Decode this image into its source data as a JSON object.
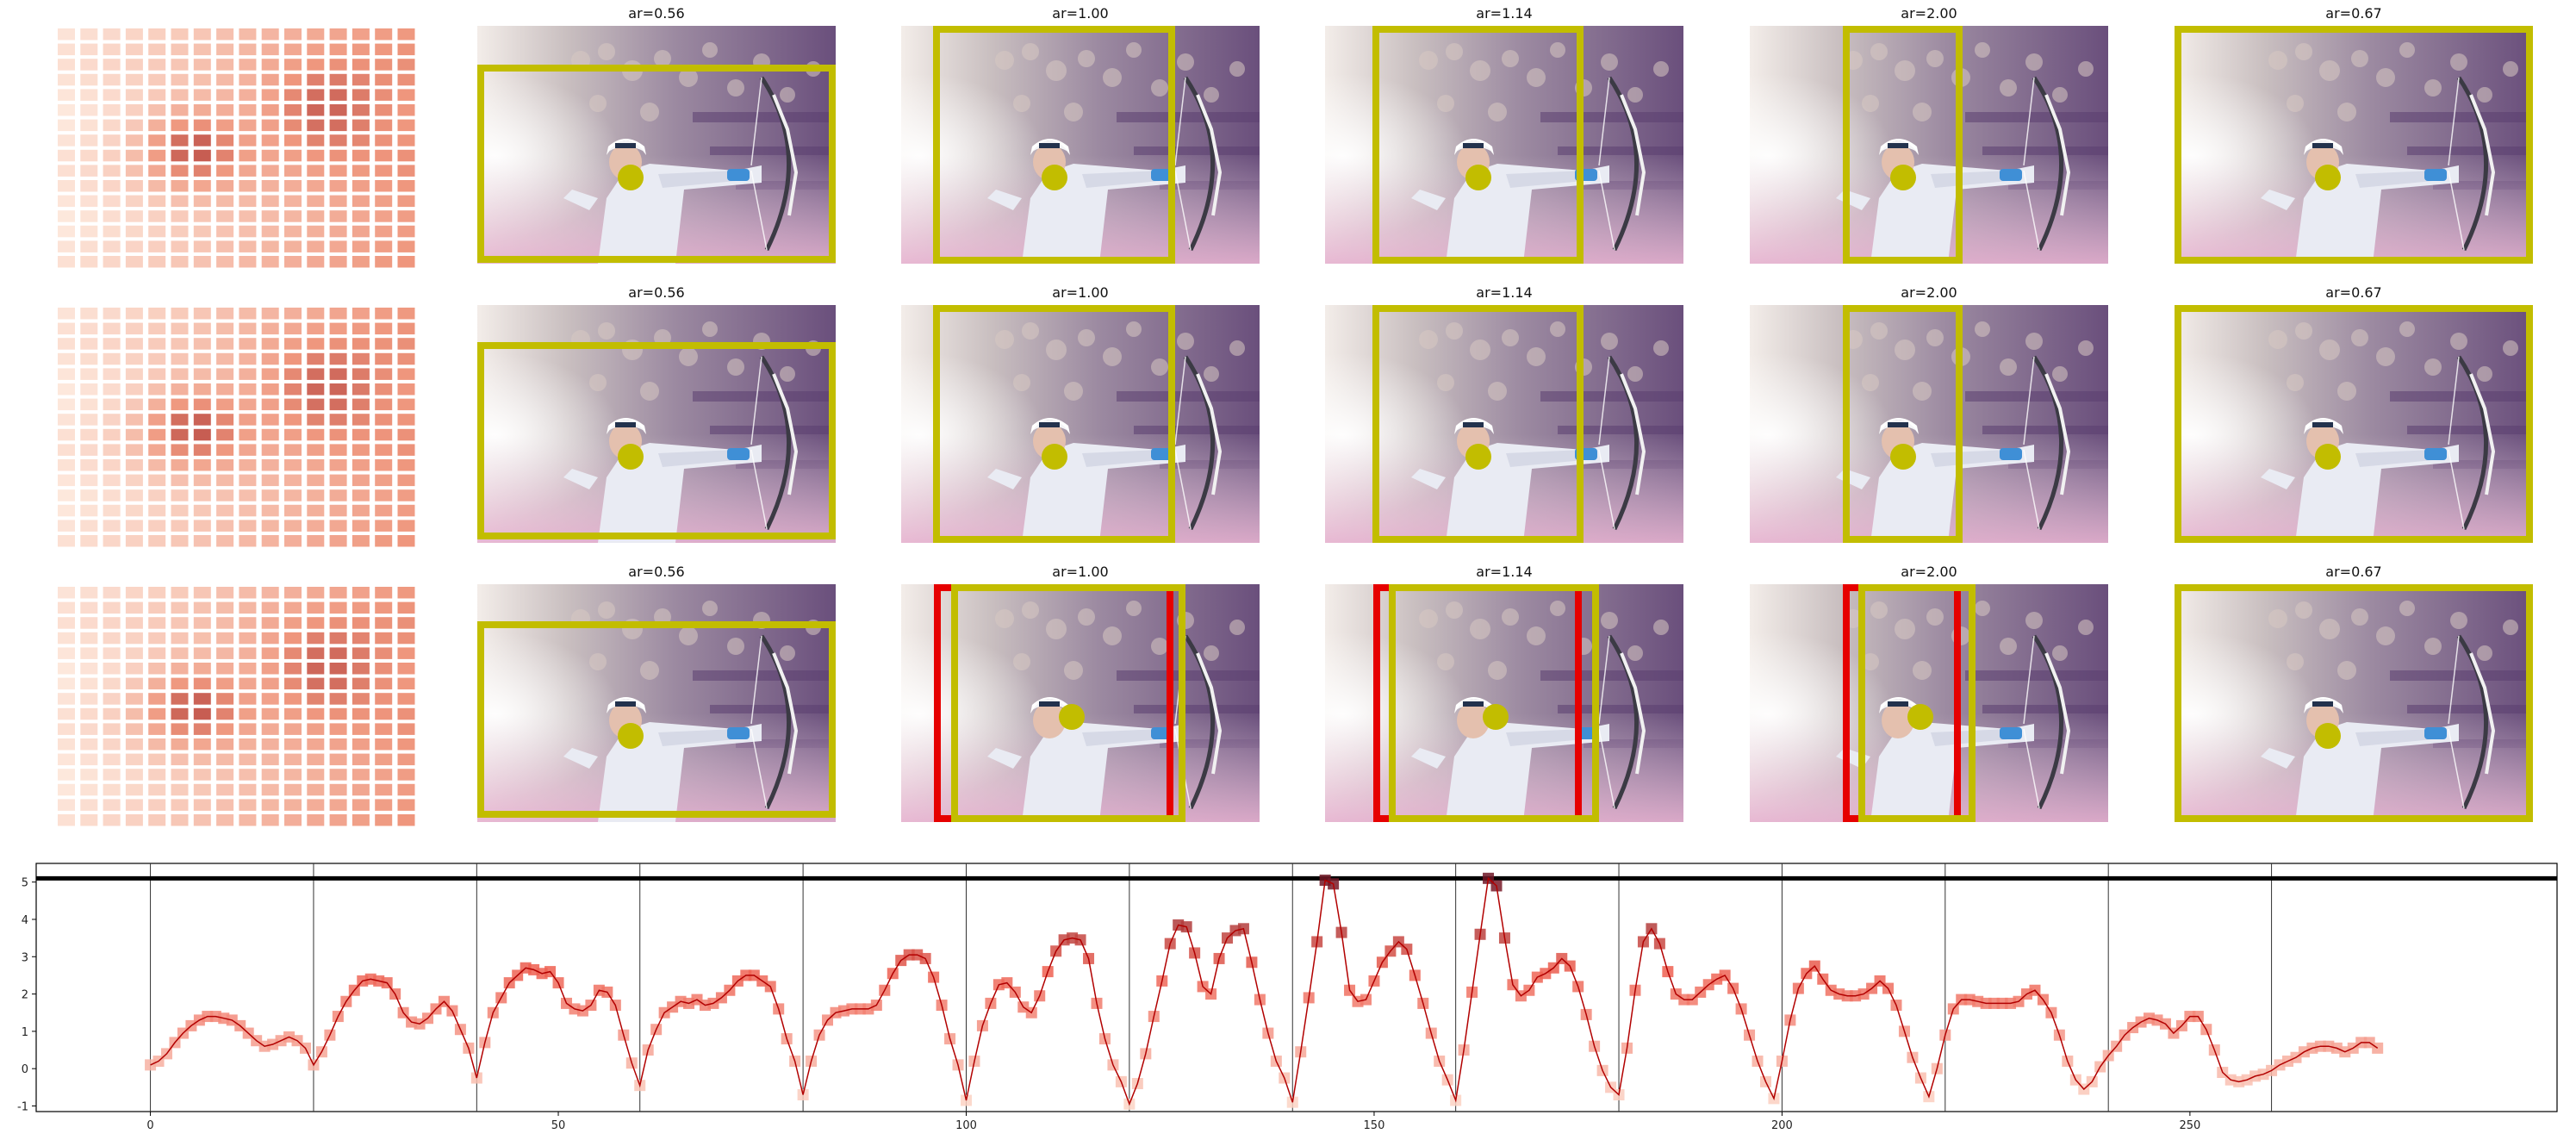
{
  "panel_titles": [
    "ar=0.56",
    "ar=1.00",
    "ar=1.14",
    "ar=2.00",
    "ar=0.67"
  ],
  "colors": {
    "crop_box": "#c2bd00",
    "alt_box": "#e60000",
    "point": "#c2bd00",
    "line": "#b20000",
    "bg_top": "#c9c3c8",
    "bg_mid": "#7b6187",
    "shirt": "#e9ebf3",
    "sleeve": "#3f8fd6"
  },
  "chart_data": {
    "type": "line",
    "title": "",
    "xlabel": "",
    "ylabel": "",
    "xlim": [
      -14,
      295
    ],
    "ylim": [
      -1.15,
      5.5
    ],
    "x_ticks": [
      0,
      50,
      100,
      150,
      200,
      250
    ],
    "y_ticks": [
      -1,
      0,
      1,
      2,
      3,
      4,
      5
    ],
    "threshold": 5.1,
    "segment_boundaries": [
      0,
      20,
      40,
      60,
      80,
      100,
      120,
      140,
      160,
      180,
      200,
      220,
      240,
      260
    ],
    "series": [
      {
        "values": [
          0.1,
          0.2,
          0.4,
          0.7,
          0.95,
          1.15,
          1.3,
          1.4,
          1.4,
          1.35,
          1.3,
          1.15,
          0.95,
          0.75,
          0.6,
          0.65,
          0.75,
          0.85,
          0.75,
          0.55,
          0.1,
          0.45,
          0.9,
          1.4,
          1.8,
          2.1,
          2.35,
          2.4,
          2.35,
          2.3,
          2.0,
          1.5,
          1.25,
          1.2,
          1.35,
          1.6,
          1.8,
          1.55,
          1.05,
          0.55,
          -0.25,
          0.7,
          1.5,
          1.9,
          2.3,
          2.5,
          2.7,
          2.65,
          2.55,
          2.6,
          2.3,
          1.75,
          1.6,
          1.55,
          1.7,
          2.1,
          2.05,
          1.7,
          0.9,
          0.15,
          -0.45,
          0.5,
          1.05,
          1.5,
          1.65,
          1.8,
          1.75,
          1.85,
          1.7,
          1.75,
          1.9,
          2.1,
          2.35,
          2.5,
          2.5,
          2.35,
          2.2,
          1.6,
          0.8,
          0.2,
          -0.7,
          0.2,
          0.9,
          1.3,
          1.5,
          1.55,
          1.6,
          1.6,
          1.6,
          1.7,
          2.1,
          2.55,
          2.9,
          3.05,
          3.05,
          2.95,
          2.45,
          1.7,
          0.8,
          0.1,
          -0.85,
          0.2,
          1.15,
          1.75,
          2.25,
          2.3,
          2.05,
          1.65,
          1.5,
          1.95,
          2.6,
          3.15,
          3.45,
          3.5,
          3.45,
          2.95,
          1.75,
          0.8,
          0.1,
          -0.35,
          -0.95,
          -0.4,
          0.4,
          1.4,
          2.35,
          3.35,
          3.85,
          3.8,
          3.1,
          2.2,
          2.0,
          2.95,
          3.5,
          3.7,
          3.75,
          2.85,
          1.85,
          0.95,
          0.2,
          -0.25,
          -0.9,
          0.45,
          1.9,
          3.4,
          5.05,
          4.95,
          3.65,
          2.1,
          1.8,
          1.85,
          2.35,
          2.85,
          3.15,
          3.4,
          3.2,
          2.5,
          1.75,
          0.95,
          0.2,
          -0.3,
          -0.85,
          0.5,
          2.05,
          3.6,
          5.1,
          4.9,
          3.5,
          2.25,
          1.95,
          2.1,
          2.45,
          2.55,
          2.7,
          2.95,
          2.75,
          2.2,
          1.45,
          0.6,
          -0.05,
          -0.5,
          -0.7,
          0.55,
          2.1,
          3.4,
          3.75,
          3.35,
          2.6,
          2.0,
          1.85,
          1.85,
          2.05,
          2.25,
          2.4,
          2.5,
          2.15,
          1.6,
          0.9,
          0.2,
          -0.35,
          -0.8,
          0.2,
          1.3,
          2.15,
          2.55,
          2.75,
          2.4,
          2.1,
          2.0,
          1.95,
          1.95,
          2.0,
          2.15,
          2.35,
          2.15,
          1.7,
          1.0,
          0.3,
          -0.25,
          -0.75,
          0.0,
          0.9,
          1.6,
          1.85,
          1.85,
          1.8,
          1.75,
          1.75,
          1.75,
          1.75,
          1.8,
          2.0,
          2.1,
          1.85,
          1.5,
          0.9,
          0.2,
          -0.3,
          -0.55,
          -0.35,
          0.05,
          0.35,
          0.6,
          0.9,
          1.1,
          1.25,
          1.35,
          1.3,
          1.2,
          0.95,
          1.15,
          1.4,
          1.4,
          1.05,
          0.5,
          -0.1,
          -0.3,
          -0.35,
          -0.3,
          -0.2,
          -0.15,
          -0.05,
          0.1,
          0.2,
          0.3,
          0.45,
          0.55,
          0.6,
          0.6,
          0.55,
          0.45,
          0.55,
          0.7,
          0.7,
          0.55
        ]
      }
    ]
  }
}
